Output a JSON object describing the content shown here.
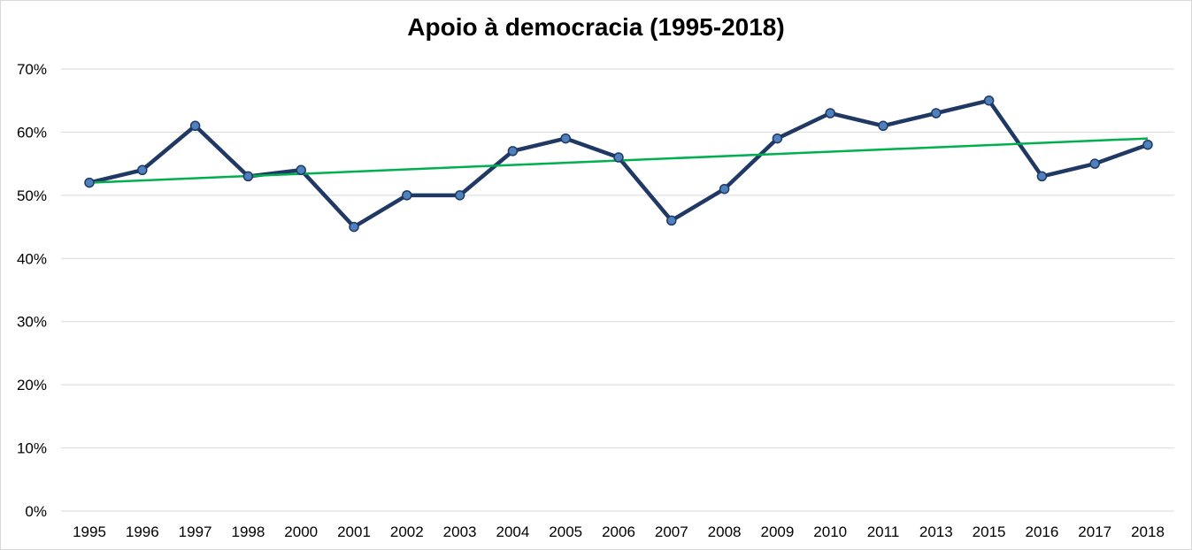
{
  "chart_data": {
    "type": "line",
    "title": "Apoio à democracia (1995-2018)",
    "xlabel": "",
    "ylabel": "",
    "categories": [
      "1995",
      "1996",
      "1997",
      "1998",
      "2000",
      "2001",
      "2002",
      "2003",
      "2004",
      "2005",
      "2006",
      "2007",
      "2008",
      "2009",
      "2010",
      "2011",
      "2013",
      "2015",
      "2016",
      "2017",
      "2018"
    ],
    "series": [
      {
        "values": [
          52,
          54,
          61,
          53,
          54,
          45,
          50,
          50,
          57,
          59,
          56,
          46,
          51,
          59,
          63,
          61,
          63,
          65,
          53,
          55,
          58
        ],
        "color": "#1f3864",
        "marker_color": "#4f81bd"
      }
    ],
    "trendline": {
      "type": "linear",
      "start": 52,
      "end": 59,
      "color": "#00b050"
    },
    "yticks": [
      "0%",
      "10%",
      "20%",
      "30%",
      "40%",
      "50%",
      "60%",
      "70%"
    ],
    "ylim": [
      0,
      70
    ],
    "grid": true,
    "legend": "none",
    "gridline_color": "#d9d9d9"
  }
}
